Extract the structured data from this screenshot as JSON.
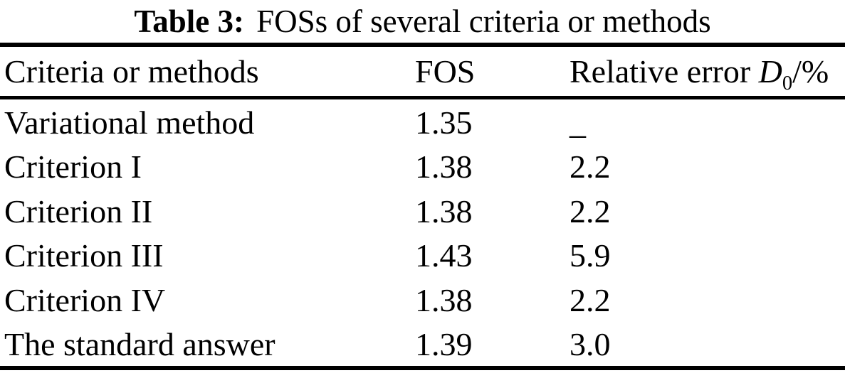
{
  "title": {
    "label": "Table 3:",
    "text": "FOSs of several criteria or methods"
  },
  "table": {
    "columns": {
      "method": "Criteria or methods",
      "fos": "FOS",
      "relative_error": {
        "prefix": "Relative error ",
        "symbol": "D",
        "subscript": "0",
        "suffix": "/%"
      }
    },
    "rows": [
      {
        "method": "Variational method",
        "fos": "1.35",
        "relative_error": "_"
      },
      {
        "method": "Criterion I",
        "fos": "1.38",
        "relative_error": "2.2"
      },
      {
        "method": "Criterion II",
        "fos": "1.38",
        "relative_error": "2.2"
      },
      {
        "method": "Criterion III",
        "fos": "1.43",
        "relative_error": "5.9"
      },
      {
        "method": "Criterion IV",
        "fos": "1.38",
        "relative_error": "2.2"
      },
      {
        "method": "The standard answer",
        "fos": "1.39",
        "relative_error": "3.0"
      }
    ]
  },
  "colors": {
    "text": "#000000",
    "background": "#ffffff",
    "rule": "#000000"
  }
}
